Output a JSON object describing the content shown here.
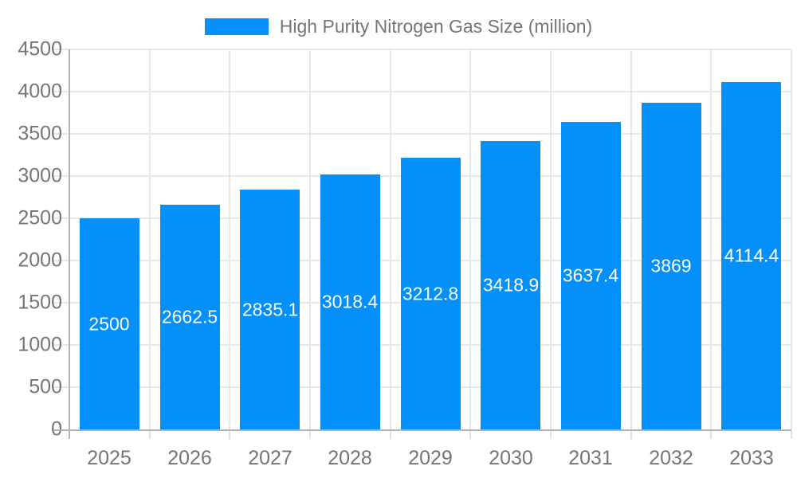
{
  "legend": {
    "label": "High Purity Nitrogen Gas Size (million)"
  },
  "chart_data": {
    "type": "bar",
    "title": "High Purity Nitrogen Gas Size (million)",
    "categories": [
      "2025",
      "2026",
      "2027",
      "2028",
      "2029",
      "2030",
      "2031",
      "2032",
      "2033"
    ],
    "values": [
      2500,
      2662.5,
      2835.1,
      3018.4,
      3212.8,
      3418.9,
      3637.4,
      3869,
      4114.4
    ],
    "bar_labels": [
      "2500",
      "2662.5",
      "2835.1",
      "3018.4",
      "3212.8",
      "3418.9",
      "3637.4",
      "3869",
      "4114.4"
    ],
    "xlabel": "",
    "ylabel": "",
    "ylim": [
      0,
      4500
    ],
    "ytick_step": 500,
    "ytick_labels": [
      "0",
      "500",
      "1000",
      "1500",
      "2000",
      "2500",
      "3000",
      "3500",
      "4000",
      "4500"
    ],
    "grid": true,
    "legend_position": "top-center",
    "bar_label_position": "center",
    "colors": {
      "bar": "#0390fa",
      "bar_label": "#ffffff",
      "axis_text": "#757575",
      "grid_line": "#e8e8e8",
      "axis_line": "#b3b3b3",
      "background": "#ffffff"
    }
  }
}
